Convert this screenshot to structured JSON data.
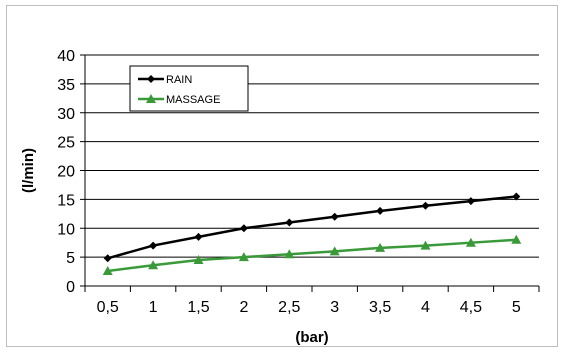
{
  "chart_data": {
    "type": "line",
    "categories": [
      "0,5",
      "1",
      "1,5",
      "2",
      "2,5",
      "3",
      "3,5",
      "4",
      "4,5",
      "5"
    ],
    "series": [
      {
        "name": "RAIN",
        "color": "#000000",
        "marker": "diamond",
        "values": [
          4.8,
          7.0,
          8.5,
          10.0,
          11.0,
          12.0,
          13.0,
          13.9,
          14.7,
          15.5
        ]
      },
      {
        "name": "MASSAGE",
        "color": "#3a9a3a",
        "marker": "triangle",
        "values": [
          2.6,
          3.6,
          4.5,
          5.0,
          5.5,
          6.0,
          6.6,
          7.0,
          7.5,
          8.0
        ]
      }
    ],
    "title": "",
    "xlabel": "(bar)",
    "ylabel": "(l/min)",
    "ylim": [
      0,
      40
    ],
    "yticks": [
      0,
      5,
      10,
      15,
      20,
      25,
      30,
      35,
      40
    ],
    "grid": "horizontal",
    "legend_position": "top-left"
  }
}
